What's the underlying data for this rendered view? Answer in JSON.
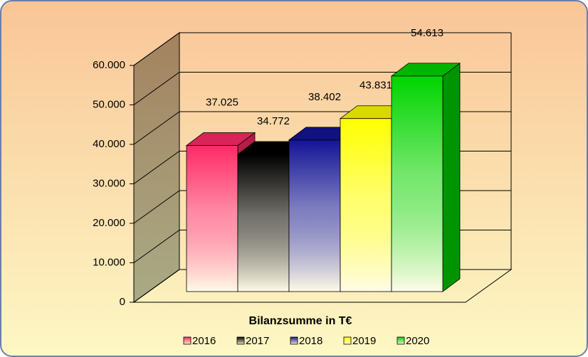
{
  "chart_data": {
    "type": "bar3d",
    "categories": [
      "Bilanzsumme in T€"
    ],
    "series": [
      {
        "name": "2016",
        "color": "#ff2a66",
        "values": [
          37025
        ],
        "value_labels": [
          "37.025"
        ]
      },
      {
        "name": "2017",
        "color": "#000000",
        "values": [
          34772
        ],
        "value_labels": [
          "34.772"
        ]
      },
      {
        "name": "2018",
        "color": "#141496",
        "values": [
          38402
        ],
        "value_labels": [
          "38.402"
        ]
      },
      {
        "name": "2019",
        "color": "#ffff00",
        "values": [
          43831
        ],
        "value_labels": [
          "43.831"
        ]
      },
      {
        "name": "2020",
        "color": "#00d400",
        "values": [
          54613
        ],
        "value_labels": [
          "54.613"
        ]
      }
    ],
    "ylim": [
      0,
      60000
    ],
    "yticks": [
      0,
      {
        "value": 10000,
        "label": "10.000"
      },
      {
        "value": 20000,
        "label": "20.000"
      },
      {
        "value": 30000,
        "label": "30.000"
      },
      {
        "value": 40000,
        "label": "40.000"
      },
      {
        "value": 50000,
        "label": "50.000"
      },
      {
        "value": 60000,
        "label": "60.000"
      }
    ],
    "grid": true,
    "legend": "bottom"
  }
}
